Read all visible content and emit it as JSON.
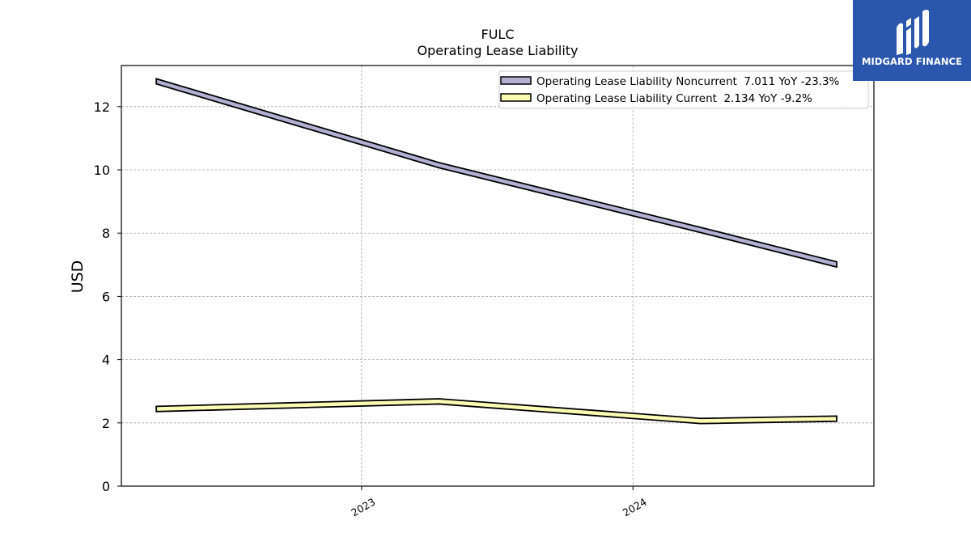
{
  "brand": {
    "name": "MIDGARD FINANCE",
    "logo_icon": "midgard-m-icon",
    "bg_color": "#2a56ad"
  },
  "chart_data": {
    "type": "line",
    "title": "FULC",
    "subtitle": "Operating Lease Liability",
    "xlabel": "",
    "ylabel": "USD",
    "x_ticks": [
      "2023",
      "2024"
    ],
    "x": [
      "2022-03-31",
      "2022-06-30",
      "2022-09-30",
      "2022-12-31",
      "2023-03-31",
      "2023-06-30",
      "2023-09-30",
      "2023-12-31",
      "2024-03-31",
      "2024-06-30",
      "2024-09-30"
    ],
    "ylim": [
      0,
      13.3
    ],
    "y_ticks": [
      0,
      2,
      4,
      6,
      8,
      10,
      12
    ],
    "grid": true,
    "legend_position": "top-right",
    "series": [
      {
        "name": "Operating Lease Liability Noncurrent  7.011 YoY -23.3%",
        "color": "#b4b0d3",
        "x": [
          "2022-03-31",
          "2023-04-15",
          "2024-04-01",
          "2024-10-01"
        ],
        "values": [
          12.8,
          10.15,
          8.1,
          7.011
        ]
      },
      {
        "name": "Operating Lease Liability Current  2.134 YoY -9.2%",
        "color": "#fbfbb4",
        "x": [
          "2022-03-31",
          "2023-04-15",
          "2024-04-01",
          "2024-10-01"
        ],
        "values": [
          2.44,
          2.68,
          2.06,
          2.134
        ]
      }
    ]
  }
}
